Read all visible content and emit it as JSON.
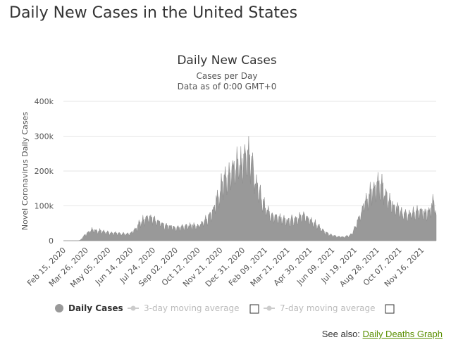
{
  "page_title": "Daily New Cases in the United States",
  "see_also": {
    "label": "See also:",
    "link_text": "Daily Deaths Graph"
  },
  "colors": {
    "series": "#999999",
    "text": "#333333",
    "muted": "#bbbbbb",
    "link": "#5a8f00"
  },
  "chart_data": {
    "type": "area",
    "title": "Daily New Cases",
    "subtitle_lines": [
      "Cases per Day",
      "Data as of 0:00 GMT+0"
    ],
    "xlabel": "",
    "ylabel": "Novel Coronavirus Daily Cases",
    "ylim": [
      0,
      400000
    ],
    "y_ticks": [
      0,
      100000,
      200000,
      300000,
      400000
    ],
    "y_tick_labels": [
      "0",
      "100k",
      "200k",
      "300k",
      "400k"
    ],
    "x_tick_labels": [
      "Feb 15, 2020",
      "Mar 26, 2020",
      "May 05, 2020",
      "Jun 14, 2020",
      "Jul 24, 2020",
      "Sep 02, 2020",
      "Oct 12, 2020",
      "Nov 21, 2020",
      "Dec 31, 2020",
      "Feb 09, 2021",
      "Mar 21, 2021",
      "Apr 30, 2021",
      "Jun 09, 2021",
      "Jul 19, 2021",
      "Aug 28, 2021",
      "Oct 07, 2021",
      "Nov 16, 2021"
    ],
    "x_tick_days": [
      0,
      40,
      80,
      120,
      160,
      200,
      240,
      280,
      320,
      360,
      400,
      440,
      480,
      520,
      560,
      600,
      640
    ],
    "x_range_days": [
      0,
      666
    ],
    "day_zero": "Feb 15, 2020",
    "legend": [
      {
        "name": "Daily Cases",
        "enabled": true
      },
      {
        "name": "3-day moving average",
        "enabled": false
      },
      {
        "name": "7-day moving average",
        "enabled": false
      }
    ],
    "series": [
      {
        "name": "Daily Cases",
        "anchors": [
          [
            0,
            0
          ],
          [
            26,
            0
          ],
          [
            30,
            1500
          ],
          [
            38,
            16000
          ],
          [
            45,
            26000
          ],
          [
            50,
            31000
          ],
          [
            60,
            29000
          ],
          [
            70,
            28000
          ],
          [
            80,
            24000
          ],
          [
            90,
            22000
          ],
          [
            100,
            21000
          ],
          [
            110,
            20000
          ],
          [
            120,
            22000
          ],
          [
            125,
            27000
          ],
          [
            135,
            50000
          ],
          [
            145,
            64000
          ],
          [
            155,
            70000
          ],
          [
            160,
            66000
          ],
          [
            170,
            54000
          ],
          [
            180,
            45000
          ],
          [
            190,
            42000
          ],
          [
            200,
            37000
          ],
          [
            210,
            40000
          ],
          [
            220,
            45000
          ],
          [
            230,
            42000
          ],
          [
            240,
            46000
          ],
          [
            250,
            55000
          ],
          [
            260,
            70000
          ],
          [
            270,
            100000
          ],
          [
            275,
            130000
          ],
          [
            280,
            150000
          ],
          [
            285,
            165000
          ],
          [
            290,
            185000
          ],
          [
            298,
            190000
          ],
          [
            303,
            205000
          ],
          [
            310,
            220000
          ],
          [
            315,
            230000
          ],
          [
            320,
            215000
          ],
          [
            323,
            250000
          ],
          [
            325,
            240000
          ],
          [
            330,
            255000
          ],
          [
            335,
            235000
          ],
          [
            340,
            200000
          ],
          [
            345,
            170000
          ],
          [
            350,
            145000
          ],
          [
            355,
            120000
          ],
          [
            360,
            100000
          ],
          [
            365,
            85000
          ],
          [
            370,
            77000
          ],
          [
            380,
            70000
          ],
          [
            390,
            62000
          ],
          [
            400,
            58000
          ],
          [
            410,
            62000
          ],
          [
            420,
            70000
          ],
          [
            430,
            72000
          ],
          [
            440,
            62000
          ],
          [
            450,
            52000
          ],
          [
            460,
            35000
          ],
          [
            470,
            23000
          ],
          [
            480,
            15000
          ],
          [
            490,
            12000
          ],
          [
            500,
            11000
          ],
          [
            510,
            14000
          ],
          [
            515,
            20000
          ],
          [
            520,
            35000
          ],
          [
            525,
            55000
          ],
          [
            530,
            75000
          ],
          [
            535,
            100000
          ],
          [
            540,
            120000
          ],
          [
            545,
            135000
          ],
          [
            550,
            150000
          ],
          [
            555,
            160000
          ],
          [
            560,
            165000
          ],
          [
            565,
            160000
          ],
          [
            570,
            155000
          ],
          [
            575,
            140000
          ],
          [
            580,
            120000
          ],
          [
            590,
            100000
          ],
          [
            600,
            90000
          ],
          [
            610,
            75000
          ],
          [
            620,
            80000
          ],
          [
            630,
            88000
          ],
          [
            640,
            82000
          ],
          [
            650,
            85000
          ],
          [
            655,
            90000
          ],
          [
            660,
            110000
          ],
          [
            664,
            105000
          ],
          [
            666,
            80000
          ]
        ],
        "peak_label_value": 300000
      }
    ]
  }
}
